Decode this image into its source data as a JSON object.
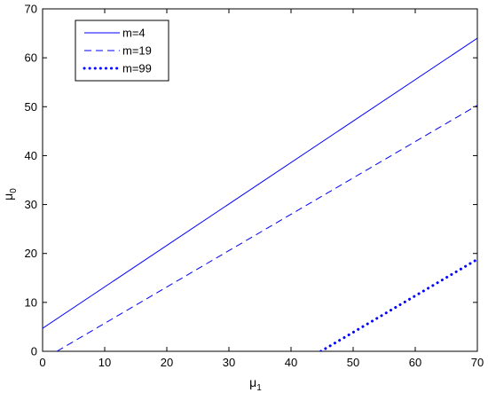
{
  "chart_data": {
    "type": "line",
    "xlabel": "μ",
    "xlabel_sub": "1",
    "ylabel": "μ",
    "ylabel_sub": "0",
    "xlim": [
      0,
      70
    ],
    "ylim": [
      0,
      70
    ],
    "xticks": [
      0,
      10,
      20,
      30,
      40,
      50,
      60,
      70
    ],
    "yticks": [
      0,
      10,
      20,
      30,
      40,
      50,
      60,
      70
    ],
    "grid": false,
    "legend_position": "top-left",
    "series": [
      {
        "name": "m=4",
        "style": "solid",
        "color": "#0000ff",
        "x": [
          0,
          70
        ],
        "y": [
          4.7,
          64.0
        ]
      },
      {
        "name": "m=19",
        "style": "dashed",
        "color": "#0000ff",
        "x": [
          2.3,
          70
        ],
        "y": [
          0,
          50.3
        ]
      },
      {
        "name": "m=99",
        "style": "dotted",
        "color": "#0000ff",
        "x": [
          44.8,
          70
        ],
        "y": [
          0,
          18.8
        ]
      }
    ]
  }
}
